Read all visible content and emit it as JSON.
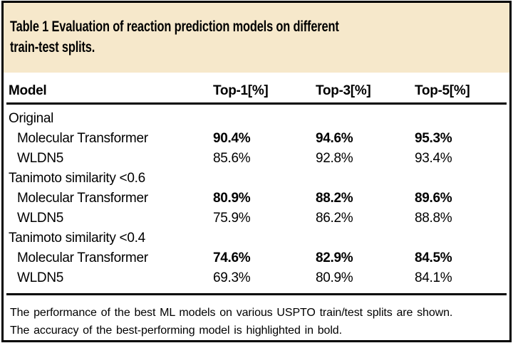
{
  "panel": {
    "title_line1": "Table 1 Evaluation of reaction prediction models on different",
    "title_line2": "train-test splits."
  },
  "table": {
    "columns": [
      "Model",
      "Top-1[%]",
      "Top-3[%]",
      "Top-5[%]"
    ],
    "groups": [
      {
        "label": "Original",
        "rows": [
          {
            "model": "Molecular Transformer",
            "top1": "90.4%",
            "top3": "94.6%",
            "top5": "95.3%",
            "emphasis": "bold"
          },
          {
            "model": "WLDN5",
            "top1": "85.6%",
            "top3": "92.8%",
            "top5": "93.4%",
            "emphasis": "regular"
          }
        ]
      },
      {
        "label": "Tanimoto similarity <0.6",
        "rows": [
          {
            "model": "Molecular Transformer",
            "top1": "80.9%",
            "top3": "88.2%",
            "top5": "89.6%",
            "emphasis": "bold"
          },
          {
            "model": "WLDN5",
            "top1": "75.9%",
            "top3": "86.2%",
            "top5": "88.8%",
            "emphasis": "regular"
          }
        ]
      },
      {
        "label": "Tanimoto similarity <0.4",
        "rows": [
          {
            "model": "Molecular Transformer",
            "top1": "74.6%",
            "top3": "82.9%",
            "top5": "84.5%",
            "emphasis": "bold"
          },
          {
            "model": "WLDN5",
            "top1": "69.3%",
            "top3": "80.9%",
            "top5": "84.1%",
            "emphasis": "regular"
          }
        ]
      }
    ]
  },
  "footnote": {
    "line1": "The performance of the best ML models on various USPTO train/test splits are shown.",
    "line2": "The accuracy of the best-performing model is highlighted in bold."
  },
  "colors": {
    "title_background": "#F6E8CB",
    "border": "#000000",
    "text": "#000000"
  }
}
